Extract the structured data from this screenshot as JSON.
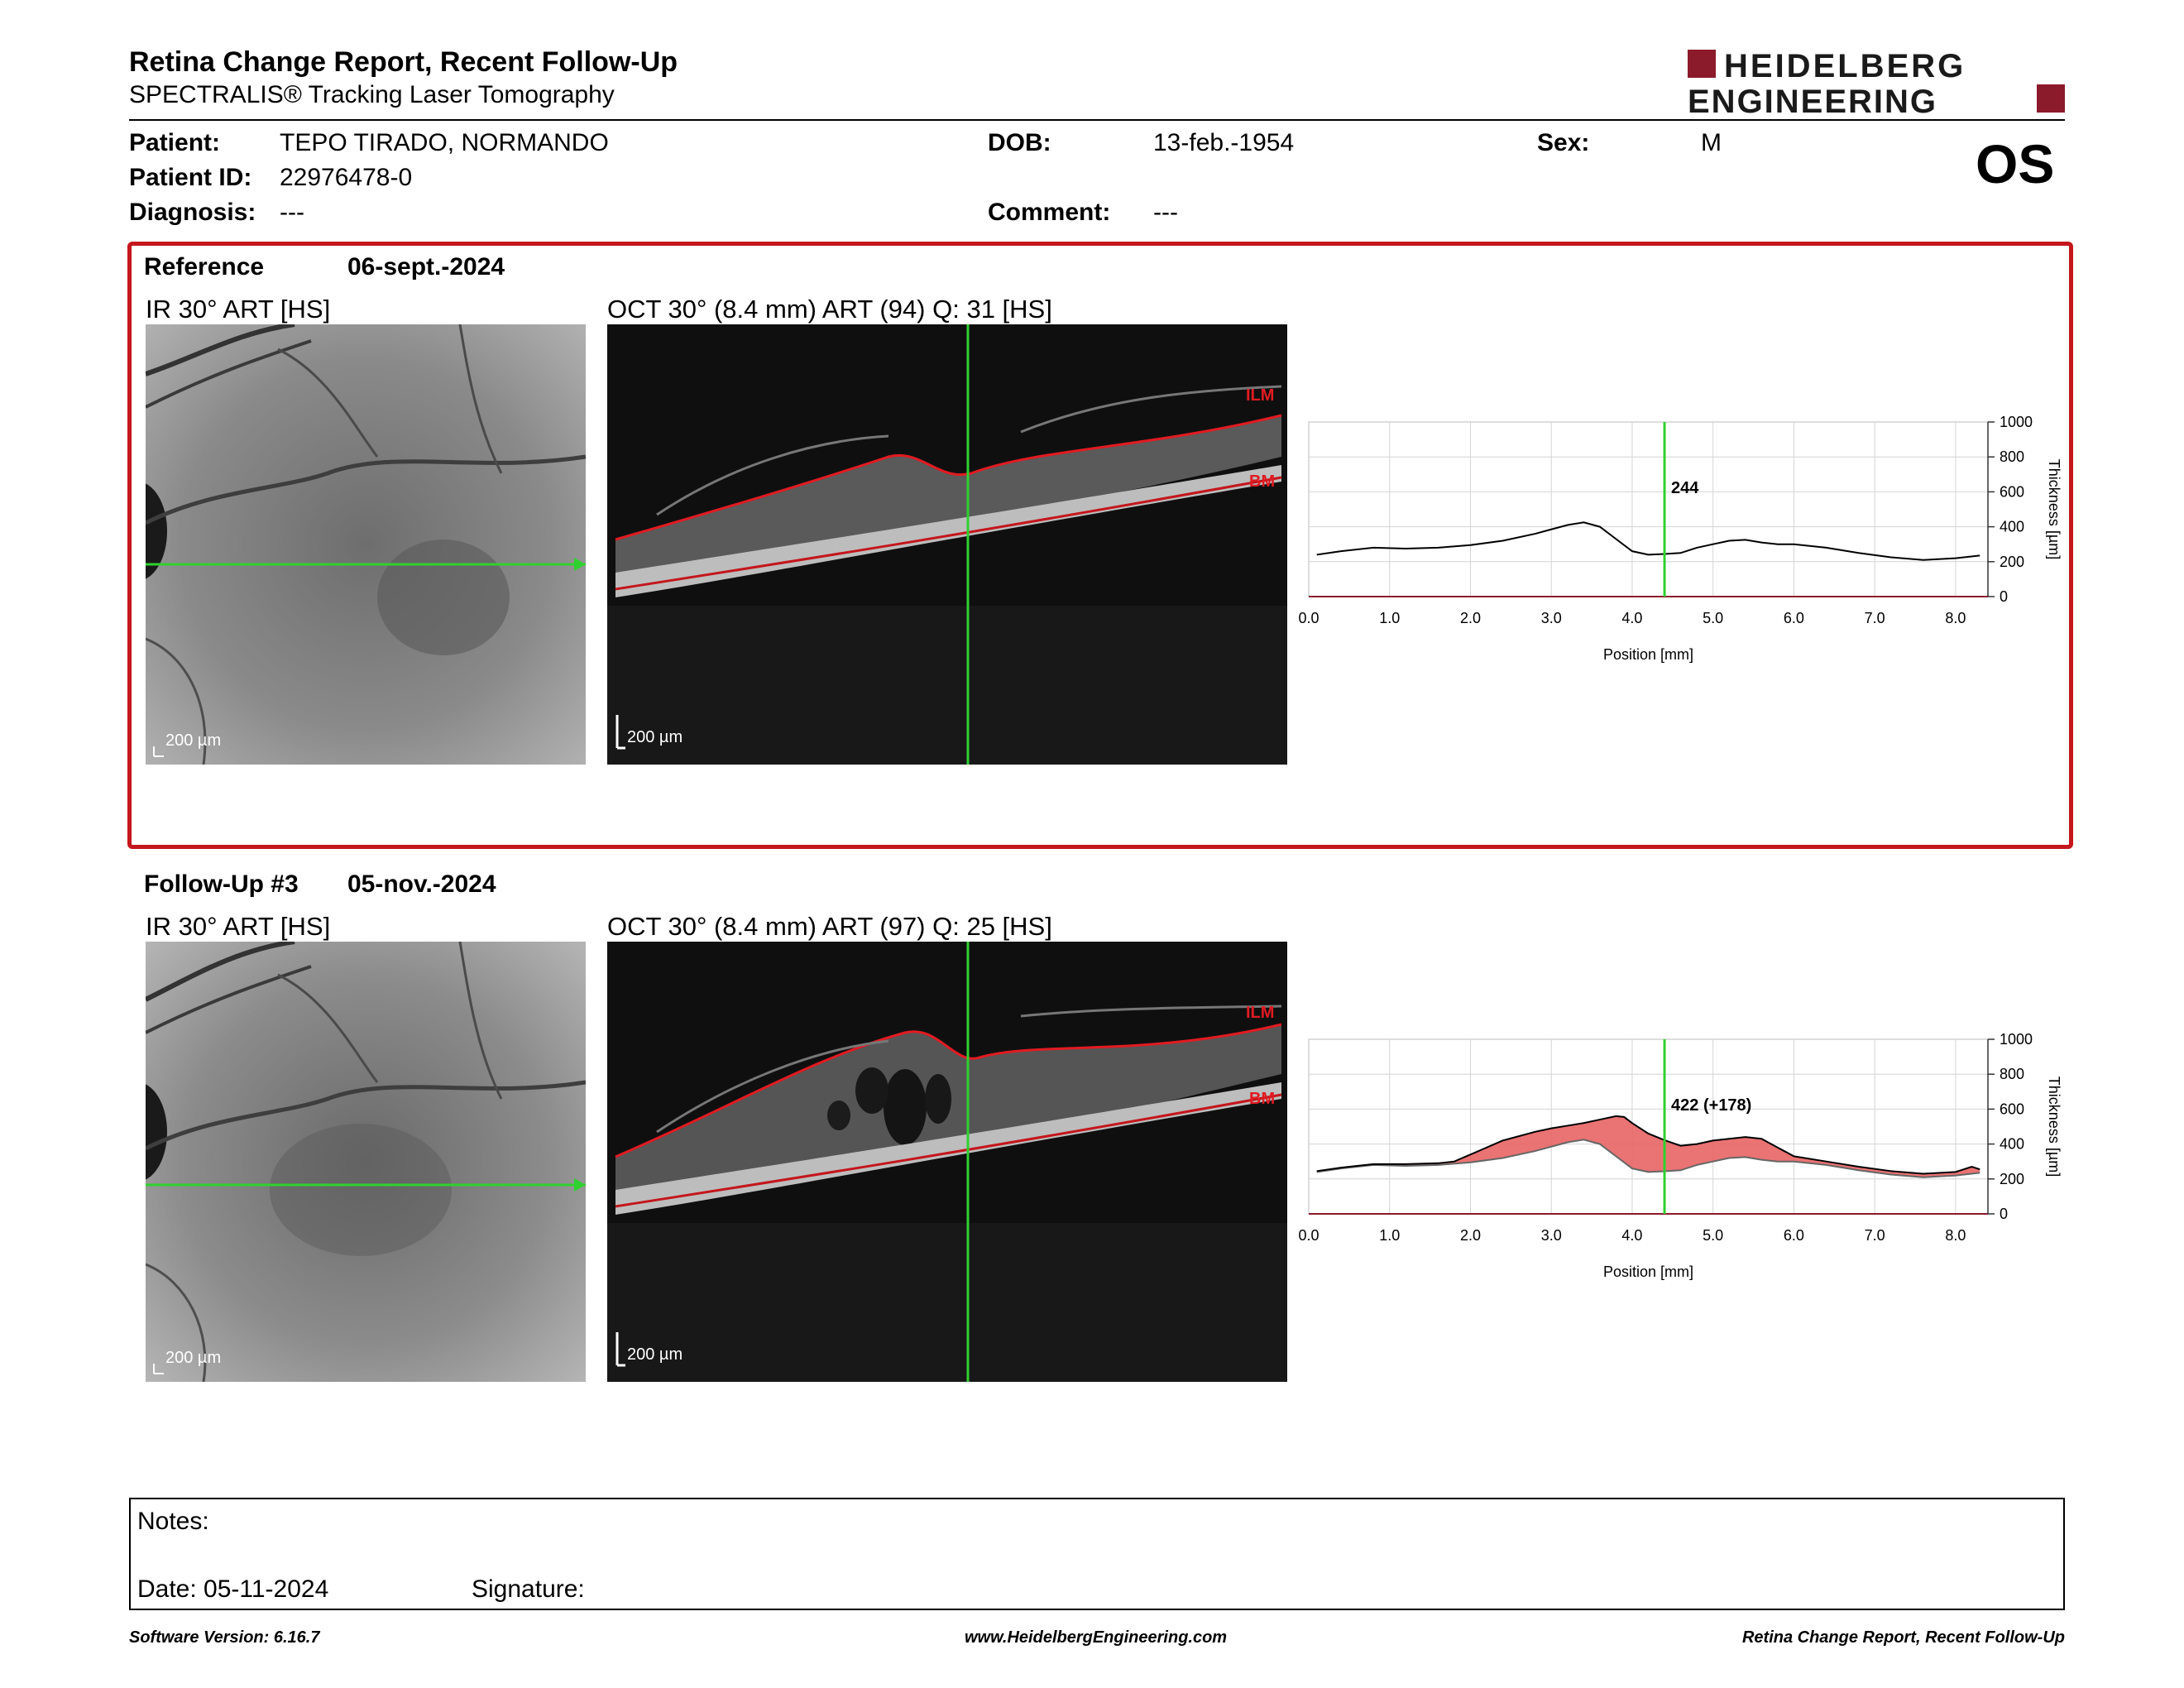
{
  "header": {
    "title": "Retina Change Report, Recent Follow-Up",
    "subtitle": "SPECTRALIS® Tracking Laser Tomography",
    "logo_line1": "HEIDELBERG",
    "logo_line2": "ENGINEERING",
    "brand_color": "#8b1a2b"
  },
  "patient": {
    "patient_label": "Patient:",
    "patient_value": "TEPO TIRADO, NORMANDO",
    "id_label": "Patient ID:",
    "id_value": "22976478-0",
    "diagnosis_label": "Diagnosis:",
    "diagnosis_value": "---",
    "dob_label": "DOB:",
    "dob_value": "13-feb.-1954",
    "comment_label": "Comment:",
    "comment_value": "---",
    "sex_label": "Sex:",
    "sex_value": "M",
    "eye": "OS"
  },
  "reference": {
    "label": "Reference",
    "date": "06-sept.-2024",
    "ir_caption": "IR 30° ART [HS]",
    "oct_caption": "OCT 30° (8.4 mm) ART (94) Q: 31 [HS]",
    "ir_scale": "200 µm",
    "oct_scale": "200 µm",
    "ilm_label": "ILM",
    "bm_label": "BM",
    "box_color": "#c4161c"
  },
  "followup": {
    "label": "Follow-Up #3",
    "date": "05-nov.-2024",
    "ir_caption": "IR 30° ART [HS]",
    "oct_caption": "OCT 30° (8.4 mm) ART (97) Q: 25 [HS]",
    "ir_scale": "200 µm",
    "oct_scale": "200 µm",
    "ilm_label": "ILM",
    "bm_label": "BM"
  },
  "chart_data": [
    {
      "type": "line",
      "xlabel": "Position [mm]",
      "ylabel": "Thickness [µm]",
      "xlim": [
        0,
        8.4
      ],
      "ylim": [
        0,
        1000
      ],
      "x_ticks": [
        "0.0",
        "1.0",
        "2.0",
        "3.0",
        "4.0",
        "5.0",
        "6.0",
        "7.0",
        "8.0"
      ],
      "y_ticks": [
        "0",
        "200",
        "400",
        "600",
        "800",
        "1000"
      ],
      "grid": true,
      "cursor_x": 4.4,
      "cursor_label": "244",
      "series": [
        {
          "x": [
            0.1,
            0.4,
            0.8,
            1.2,
            1.6,
            2.0,
            2.4,
            2.8,
            3.0,
            3.2,
            3.4,
            3.6,
            3.8,
            4.0,
            4.2,
            4.4,
            4.6,
            4.8,
            5.0,
            5.2,
            5.4,
            5.6,
            5.8,
            6.0,
            6.4,
            6.8,
            7.2,
            7.6,
            8.0,
            8.3
          ],
          "y": [
            240,
            260,
            280,
            275,
            280,
            295,
            320,
            360,
            385,
            410,
            425,
            400,
            330,
            260,
            240,
            244,
            250,
            280,
            300,
            320,
            325,
            310,
            300,
            300,
            280,
            250,
            225,
            210,
            220,
            235
          ]
        }
      ]
    },
    {
      "type": "area",
      "xlabel": "Position [mm]",
      "ylabel": "Thickness [µm]",
      "xlim": [
        0,
        8.4
      ],
      "ylim": [
        0,
        1000
      ],
      "x_ticks": [
        "0.0",
        "1.0",
        "2.0",
        "3.0",
        "4.0",
        "5.0",
        "6.0",
        "7.0",
        "8.0"
      ],
      "y_ticks": [
        "0",
        "200",
        "400",
        "600",
        "800",
        "1000"
      ],
      "grid": true,
      "cursor_x": 4.4,
      "cursor_label": "422 (+178)",
      "fill_color": "#e86464",
      "series": [
        {
          "x": [
            0.1,
            0.4,
            0.8,
            1.2,
            1.6,
            1.8,
            2.0,
            2.4,
            2.8,
            3.0,
            3.2,
            3.4,
            3.6,
            3.8,
            3.9,
            4.0,
            4.2,
            4.4,
            4.6,
            4.8,
            5.0,
            5.2,
            5.4,
            5.6,
            5.8,
            6.0,
            6.4,
            6.8,
            7.2,
            7.6,
            8.0,
            8.2,
            8.3
          ],
          "y": [
            245,
            265,
            285,
            285,
            290,
            300,
            340,
            420,
            470,
            490,
            505,
            520,
            540,
            560,
            555,
            520,
            460,
            422,
            390,
            400,
            420,
            430,
            440,
            430,
            380,
            330,
            300,
            270,
            245,
            230,
            240,
            270,
            255
          ]
        },
        {
          "x": [
            0.1,
            0.4,
            0.8,
            1.2,
            1.6,
            2.0,
            2.4,
            2.8,
            3.0,
            3.2,
            3.4,
            3.6,
            3.8,
            4.0,
            4.2,
            4.4,
            4.6,
            4.8,
            5.0,
            5.2,
            5.4,
            5.6,
            5.8,
            6.0,
            6.4,
            6.8,
            7.2,
            7.6,
            8.0,
            8.3
          ],
          "y": [
            240,
            260,
            280,
            275,
            280,
            295,
            320,
            360,
            385,
            410,
            425,
            400,
            330,
            260,
            240,
            244,
            250,
            280,
            300,
            320,
            325,
            310,
            300,
            300,
            280,
            250,
            225,
            210,
            220,
            235
          ]
        }
      ]
    }
  ],
  "notes": {
    "notes_label": "Notes:",
    "date_label": "Date: 05-11-2024",
    "signature_label": "Signature:"
  },
  "footer": {
    "version": "Software Version: 6.16.7",
    "website": "www.HeidelbergEngineering.com",
    "report": "Retina Change Report, Recent Follow-Up"
  }
}
